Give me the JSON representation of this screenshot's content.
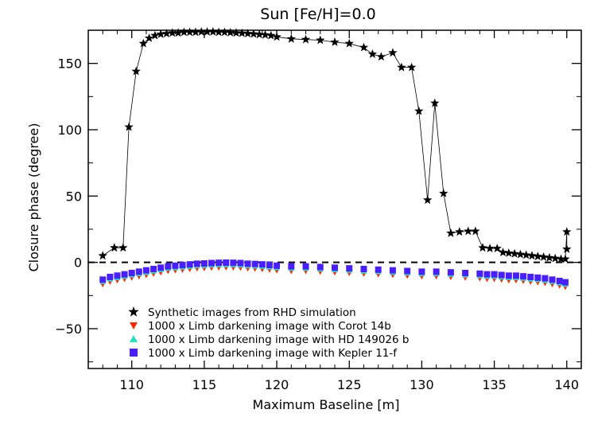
{
  "chart_data": {
    "type": "scatter",
    "title": "Sun [Fe/H]=0.0",
    "xlabel": "Maximum Baseline [m]",
    "ylabel": "Closure phase (degree)",
    "xlim": [
      107,
      141
    ],
    "ylim": [
      -80,
      175
    ],
    "x_ticks": [
      "110",
      "115",
      "120",
      "125",
      "130",
      "135",
      "140"
    ],
    "y_ticks": [
      "−50",
      "0",
      "50",
      "100",
      "150"
    ],
    "zero_line": true,
    "legend_position": "bottom-left",
    "series": [
      {
        "name": "Synthetic images from RHD simulation",
        "marker": "star",
        "color": "#000000",
        "connected": true,
        "x": [
          108,
          108.8,
          109.4,
          109.8,
          110.3,
          110.8,
          111.2,
          111.6,
          112,
          112.4,
          112.8,
          113.2,
          113.6,
          114,
          114.4,
          114.8,
          115.2,
          115.6,
          116,
          116.4,
          116.8,
          117.2,
          117.6,
          118,
          118.4,
          118.8,
          119.2,
          119.6,
          120,
          121,
          122,
          123,
          124,
          125,
          126,
          126.6,
          127.2,
          128,
          128.6,
          129.3,
          129.8,
          130.4,
          130.9,
          131.5,
          132,
          132.6,
          133.2,
          133.7,
          134.2,
          134.7,
          135.2,
          135.6,
          136,
          136.4,
          136.8,
          137.2,
          137.6,
          138,
          138.4,
          138.8,
          139.2,
          139.6,
          139.9,
          140,
          140
        ],
        "y": [
          5,
          11,
          11,
          102,
          144,
          165,
          169,
          171,
          172,
          172.5,
          173,
          173,
          173.5,
          173.5,
          173.5,
          173.8,
          173.8,
          173.8,
          173.5,
          173.5,
          173.2,
          173,
          172.8,
          172.5,
          172.2,
          171.8,
          171.5,
          171,
          170,
          168.5,
          168,
          167.5,
          166,
          165,
          162,
          157,
          155,
          158,
          147,
          147,
          114,
          47,
          120,
          52,
          22,
          23,
          23.5,
          23.5,
          11,
          10.5,
          10.5,
          7.5,
          7,
          6.5,
          6,
          5.5,
          5,
          4.5,
          4,
          3.5,
          3,
          2.5,
          2.5,
          23,
          10
        ]
      },
      {
        "name": "1000 x Limb darkening image with Corot 14b",
        "marker": "triangle-down",
        "color": "#ff2a00",
        "offset": -3.5
      },
      {
        "name": "1000 x Limb darkening image with HD 149026 b",
        "marker": "triangle-up",
        "color": "#25e0c0",
        "offset": -1.5
      },
      {
        "name": "1000 x Limb darkening image with Kepler 11-f",
        "marker": "square",
        "color": "#4a1fff",
        "offset": 0,
        "x": [
          108,
          108.5,
          109,
          109.5,
          110,
          110.5,
          111,
          111.5,
          112,
          112.5,
          113,
          113.5,
          114,
          114.5,
          115,
          115.5,
          116,
          116.5,
          117,
          117.5,
          118,
          118.5,
          119,
          119.5,
          120,
          121,
          122,
          123,
          124,
          125,
          126,
          127,
          128,
          129,
          130,
          131,
          132,
          133,
          134,
          134.5,
          135,
          135.5,
          136,
          136.5,
          137,
          137.5,
          138,
          138.5,
          139,
          139.5,
          139.9
        ],
        "y": [
          -13,
          -11,
          -10,
          -9,
          -8,
          -7,
          -6,
          -5,
          -4,
          -3,
          -2.5,
          -2,
          -1.5,
          -1,
          -0.8,
          -0.5,
          -0.3,
          -0.2,
          -0.3,
          -0.5,
          -1,
          -1.2,
          -1.5,
          -2,
          -2.5,
          -3,
          -3,
          -3.5,
          -4,
          -4.5,
          -5,
          -5.5,
          -6,
          -6.5,
          -7,
          -7,
          -7.5,
          -8,
          -8.5,
          -9,
          -9,
          -9.5,
          -10,
          -10,
          -10.5,
          -11,
          -11.5,
          -12,
          -13,
          -14,
          -15
        ]
      }
    ]
  }
}
